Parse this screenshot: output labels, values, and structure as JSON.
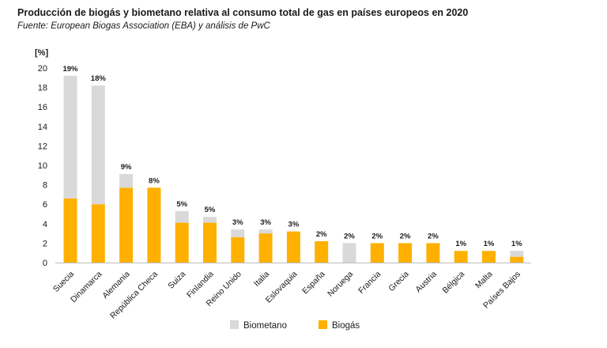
{
  "title": "Producción de biogás y biometano relativa al consumo total de gas en países europeos en 2020",
  "subtitle": "Fuente: European Biogas Association (EBA) y análisis de PwC",
  "chart_data": {
    "type": "bar",
    "stacked": true,
    "ylabel": "[%]",
    "ylim": [
      0,
      20
    ],
    "yticks": [
      0,
      2,
      4,
      6,
      8,
      10,
      12,
      14,
      16,
      18,
      20
    ],
    "grid": false,
    "legend_position": "bottom-center",
    "categories": [
      "Suecia",
      "Dinamarca",
      "Alemania",
      "República Checa",
      "Suiza",
      "Finlandia",
      "Reino Unido",
      "Italia",
      "Eslovaquia",
      "España",
      "Noruega",
      "Francia",
      "Grecia",
      "Austria",
      "Bélgica",
      "Malta",
      "Países Bajos"
    ],
    "series": [
      {
        "name": "Biogás",
        "color": "#FFB000",
        "values": [
          6.6,
          6.0,
          7.7,
          7.7,
          4.1,
          4.1,
          2.6,
          3.0,
          3.2,
          2.2,
          0.0,
          2.0,
          2.0,
          2.0,
          1.2,
          1.2,
          0.6
        ]
      },
      {
        "name": "Biometano",
        "color": "#D9D9D9",
        "values": [
          12.6,
          12.2,
          1.4,
          0.0,
          1.2,
          0.6,
          0.8,
          0.4,
          0.0,
          0.0,
          2.0,
          0.0,
          0.0,
          0.0,
          0.0,
          0.0,
          0.6
        ]
      }
    ],
    "data_labels": [
      "19%",
      "18%",
      "9%",
      "8%",
      "5%",
      "5%",
      "3%",
      "3%",
      "3%",
      "2%",
      "2%",
      "2%",
      "2%",
      "2%",
      "1%",
      "1%",
      "1%"
    ],
    "legend": [
      {
        "label": "Biometano",
        "color": "#D9D9D9"
      },
      {
        "label": "Biogás",
        "color": "#FFB000"
      }
    ]
  }
}
